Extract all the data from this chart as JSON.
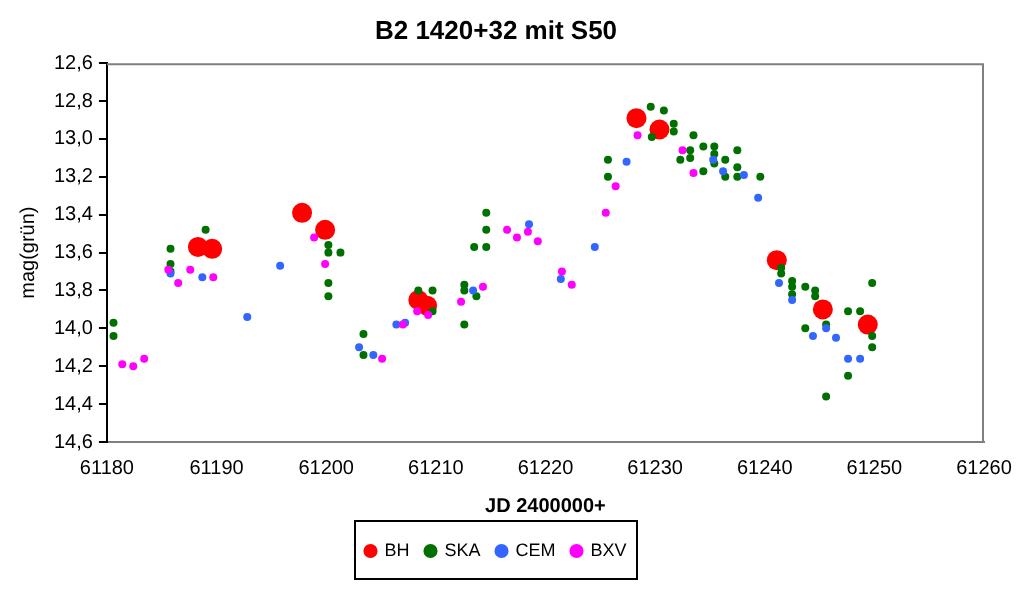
{
  "chart_data": {
    "type": "scatter",
    "title": "B2 1420+32 mit S50",
    "xlabel": "JD 2400000+",
    "ylabel": "mag(grün)",
    "xlim": [
      61180,
      61260
    ],
    "xticks": [
      61180,
      61190,
      61200,
      61210,
      61220,
      61230,
      61240,
      61250,
      61260
    ],
    "ylim": [
      14.6,
      12.6
    ],
    "yticks": [
      {
        "value": 12.6,
        "label": "12,6"
      },
      {
        "value": 12.8,
        "label": "12,8"
      },
      {
        "value": 13.0,
        "label": "13,0"
      },
      {
        "value": 13.2,
        "label": "13,2"
      },
      {
        "value": 13.4,
        "label": "13,4"
      },
      {
        "value": 13.6,
        "label": "13,6"
      },
      {
        "value": 13.8,
        "label": "13,8"
      },
      {
        "value": 14.0,
        "label": "14,0"
      },
      {
        "value": 14.2,
        "label": "14,2"
      },
      {
        "value": 14.4,
        "label": "14,4"
      },
      {
        "value": 14.6,
        "label": "14,6"
      }
    ],
    "grid": false,
    "legend": "bottom",
    "marker": "circle",
    "series": [
      {
        "name": "BH",
        "color": "#ff0000",
        "x": [
          61188.3,
          61189.6,
          61197.8,
          61199.9,
          61208.4,
          61209.2,
          61228.3,
          61230.4,
          61241.1,
          61245.3,
          61249.4
        ],
        "values": [
          13.57,
          13.58,
          13.39,
          13.48,
          13.85,
          13.88,
          12.89,
          12.95,
          13.64,
          13.9,
          13.98
        ]
      },
      {
        "name": "SKA",
        "color": "#007000",
        "x": [
          61180.6,
          61180.6,
          61185.8,
          61185.8,
          61185.8,
          61189,
          61200.2,
          61200.2,
          61200.2,
          61200.2,
          61201.3,
          61203.4,
          61203.4,
          61208.4,
          61209.7,
          61209.7,
          61212.6,
          61212.6,
          61212.6,
          61213.5,
          61214.6,
          61214.6,
          61214.6,
          61213.7,
          61225.7,
          61225.7,
          61229.6,
          61230.8,
          61229.7,
          61231.7,
          61231.7,
          61233.5,
          61232.3,
          61233.2,
          61233.2,
          61234.4,
          61234.4,
          61235.4,
          61235.4,
          61235.4,
          61236.4,
          61236.4,
          61237.5,
          61237.5,
          61237.5,
          61239.6,
          61241.5,
          61241.5,
          61242.5,
          61242.5,
          61242.5,
          61243.7,
          61244.6,
          61244.6,
          61243.7,
          61245.6,
          61245.6,
          61247.6,
          61248.7,
          61249.8,
          61249.8,
          61249.8,
          61247.6
        ],
        "values": [
          13.97,
          14.04,
          13.58,
          13.66,
          13.7,
          13.48,
          13.56,
          13.6,
          13.76,
          13.83,
          13.6,
          14.03,
          14.14,
          13.8,
          13.8,
          13.91,
          13.77,
          13.8,
          13.98,
          13.57,
          13.39,
          13.48,
          13.57,
          13.83,
          13.11,
          13.2,
          12.83,
          12.85,
          12.99,
          12.92,
          12.96,
          12.98,
          13.11,
          13.06,
          13.1,
          13.04,
          13.17,
          13.04,
          13.08,
          13.13,
          13.11,
          13.2,
          13.06,
          13.15,
          13.2,
          13.2,
          13.68,
          13.71,
          13.75,
          13.78,
          13.82,
          13.78,
          13.8,
          13.83,
          14.0,
          13.98,
          14.36,
          13.91,
          13.91,
          13.76,
          14.04,
          14.1,
          14.25
        ]
      },
      {
        "name": "CEM",
        "color": "#3366ff",
        "x": [
          61185.8,
          61188.7,
          61192.8,
          61195.8,
          61203,
          61204.3,
          61207.2,
          61206.4,
          61213.4,
          61218.5,
          61221.4,
          61224.5,
          61227.4,
          61235.3,
          61236.2,
          61238.1,
          61239.4,
          61241.3,
          61242.5,
          61244.4,
          61245.6,
          61246.5,
          61247.6,
          61248.7
        ],
        "values": [
          13.71,
          13.73,
          13.94,
          13.67,
          14.1,
          14.14,
          13.97,
          13.98,
          13.8,
          13.45,
          13.74,
          13.57,
          13.12,
          13.11,
          13.17,
          13.19,
          13.31,
          13.76,
          13.85,
          14.04,
          14.0,
          14.05,
          14.16,
          14.16
        ]
      },
      {
        "name": "BXV",
        "color": "#ff00ff",
        "x": [
          61185.6,
          61181.4,
          61182.4,
          61183.4,
          61186.5,
          61187.6,
          61189.7,
          61198.9,
          61199.9,
          61205.1,
          61207,
          61208.3,
          61209.3,
          61212.3,
          61214.3,
          61216.5,
          61217.4,
          61218.4,
          61219.3,
          61221.5,
          61222.4,
          61225.5,
          61226.4,
          61228.4,
          61232.5,
          61233.5
        ],
        "values": [
          13.69,
          14.19,
          14.2,
          14.16,
          13.76,
          13.69,
          13.73,
          13.52,
          13.66,
          14.16,
          13.98,
          13.91,
          13.93,
          13.86,
          13.78,
          13.48,
          13.52,
          13.49,
          13.54,
          13.7,
          13.77,
          13.39,
          13.25,
          12.98,
          13.06,
          13.18
        ]
      }
    ]
  }
}
